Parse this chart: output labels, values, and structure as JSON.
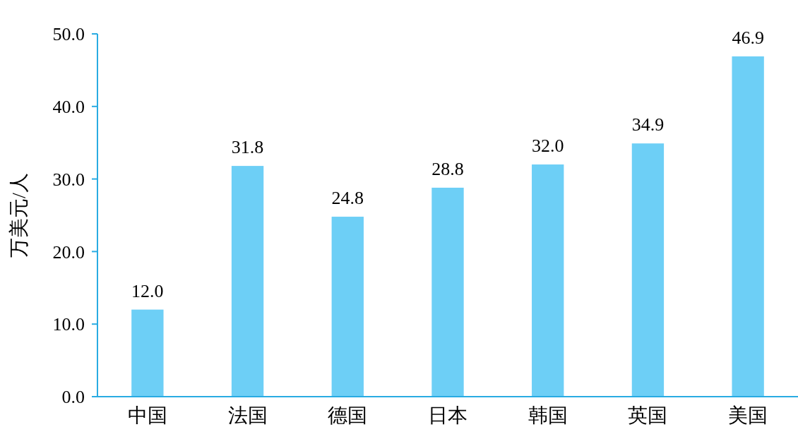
{
  "chart_data": {
    "type": "bar",
    "ylabel": "万美元/人",
    "categories": [
      "中国",
      "法国",
      "德国",
      "日本",
      "韩国",
      "英国",
      "美国"
    ],
    "values": [
      12.0,
      31.8,
      24.8,
      28.8,
      32.0,
      34.9,
      46.9
    ],
    "value_labels": [
      "12.0",
      "31.8",
      "24.8",
      "28.8",
      "32.0",
      "34.9",
      "46.9"
    ],
    "color": "#6dcff6",
    "ylim": [
      0,
      50
    ],
    "yticks": [
      {
        "value": 0,
        "label": "0.0"
      },
      {
        "value": 10,
        "label": "10.0"
      },
      {
        "value": 20,
        "label": "20.0"
      },
      {
        "value": 30,
        "label": "30.0"
      },
      {
        "value": 40,
        "label": "40.0"
      },
      {
        "value": 50,
        "label": "50.0"
      }
    ],
    "grid": false
  }
}
